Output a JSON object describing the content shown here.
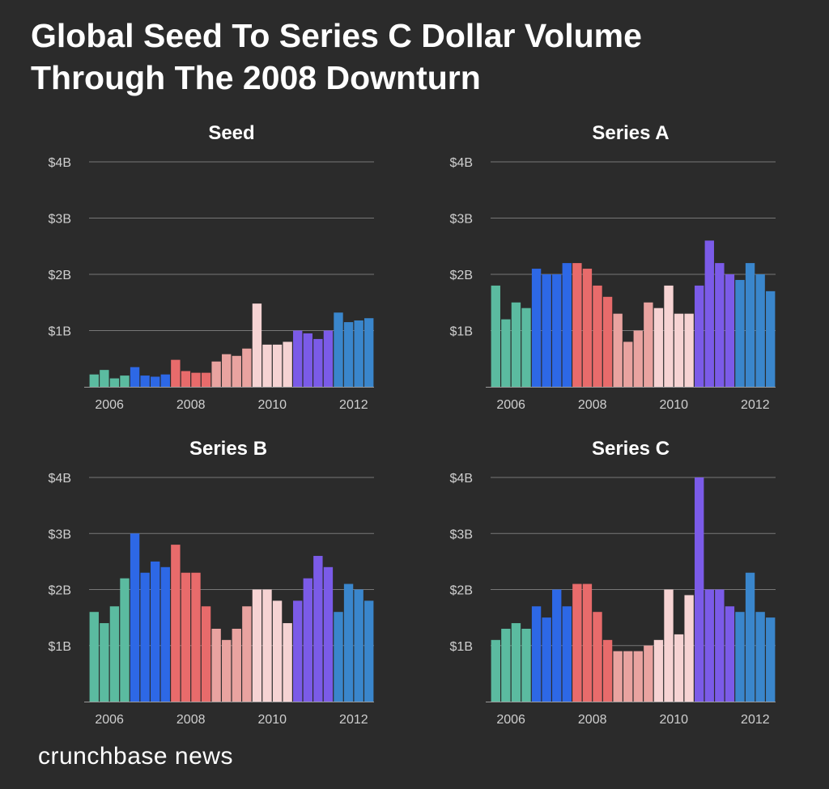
{
  "title": {
    "line1": "Global Seed To Series C Dollar Volume",
    "line2": "Through The 2008 Downturn"
  },
  "brand": "crunchbase news",
  "colors": {
    "background": "#2b2b2b",
    "gridline": "#777777",
    "axis": "#9a9a9a",
    "tick_text": "#cfcfcf",
    "periods": [
      "#5bbba0",
      "#2d68e6",
      "#e86b6b",
      "#e9a3a0",
      "#f6d3d3",
      "#7b5be8",
      "#3a86cc"
    ]
  },
  "chart_data": [
    {
      "type": "bar",
      "title": "Seed",
      "ylim": [
        0,
        4
      ],
      "yticks": [
        1,
        2,
        3,
        4
      ],
      "ytick_labels": [
        "$1B",
        "$2B",
        "$3B",
        "$4B"
      ],
      "xtick_labels": [
        "2006",
        "2008",
        "2010",
        "2012"
      ],
      "xlim": [
        2005.5,
        2012.5
      ],
      "x_start": 2005.5,
      "x_step": 0.25,
      "values": [
        0.22,
        0.3,
        0.15,
        0.2,
        0.35,
        0.2,
        0.18,
        0.22,
        0.48,
        0.28,
        0.25,
        0.25,
        0.45,
        0.58,
        0.55,
        0.68,
        1.48,
        0.75,
        0.75,
        0.8,
        1.0,
        0.95,
        0.85,
        1.0,
        1.32,
        1.15,
        1.18,
        1.22
      ],
      "period_index": [
        0,
        0,
        0,
        0,
        1,
        1,
        1,
        1,
        2,
        2,
        2,
        2,
        3,
        3,
        3,
        3,
        4,
        4,
        4,
        4,
        5,
        5,
        5,
        5,
        6,
        6,
        6,
        6
      ]
    },
    {
      "type": "bar",
      "title": "Series A",
      "ylim": [
        0,
        4
      ],
      "yticks": [
        1,
        2,
        3,
        4
      ],
      "ytick_labels": [
        "$1B",
        "$2B",
        "$3B",
        "$4B"
      ],
      "xtick_labels": [
        "2006",
        "2008",
        "2010",
        "2012"
      ],
      "xlim": [
        2005.5,
        2012.5
      ],
      "x_start": 2005.5,
      "x_step": 0.25,
      "values": [
        1.8,
        1.2,
        1.5,
        1.4,
        2.1,
        2.0,
        2.0,
        2.2,
        2.2,
        2.1,
        1.8,
        1.6,
        1.3,
        0.8,
        1.0,
        1.5,
        1.4,
        1.8,
        1.3,
        1.3,
        1.8,
        2.6,
        2.2,
        2.0,
        1.9,
        2.2,
        2.0,
        1.7
      ],
      "period_index": [
        0,
        0,
        0,
        0,
        1,
        1,
        1,
        1,
        2,
        2,
        2,
        2,
        3,
        3,
        3,
        3,
        4,
        4,
        4,
        4,
        5,
        5,
        5,
        5,
        6,
        6,
        6,
        6
      ]
    },
    {
      "type": "bar",
      "title": "Series B",
      "ylim": [
        0,
        4
      ],
      "yticks": [
        1,
        2,
        3,
        4
      ],
      "ytick_labels": [
        "$1B",
        "$2B",
        "$3B",
        "$4B"
      ],
      "xtick_labels": [
        "2006",
        "2008",
        "2010",
        "2012"
      ],
      "xlim": [
        2005.5,
        2012.5
      ],
      "x_start": 2005.5,
      "x_step": 0.25,
      "values": [
        1.6,
        1.4,
        1.7,
        2.2,
        3.0,
        2.3,
        2.5,
        2.4,
        2.8,
        2.3,
        2.3,
        1.7,
        1.3,
        1.1,
        1.3,
        1.7,
        2.0,
        2.0,
        1.8,
        1.4,
        1.8,
        2.2,
        2.6,
        2.4,
        1.6,
        2.1,
        2.0,
        1.8
      ],
      "period_index": [
        0,
        0,
        0,
        0,
        1,
        1,
        1,
        1,
        2,
        2,
        2,
        2,
        3,
        3,
        3,
        3,
        4,
        4,
        4,
        4,
        5,
        5,
        5,
        5,
        6,
        6,
        6,
        6
      ]
    },
    {
      "type": "bar",
      "title": "Series C",
      "ylim": [
        0,
        4
      ],
      "yticks": [
        1,
        2,
        3,
        4
      ],
      "ytick_labels": [
        "$1B",
        "$2B",
        "$3B",
        "$4B"
      ],
      "xtick_labels": [
        "2006",
        "2008",
        "2010",
        "2012"
      ],
      "xlim": [
        2005.5,
        2012.5
      ],
      "x_start": 2005.5,
      "x_step": 0.25,
      "values": [
        1.1,
        1.3,
        1.4,
        1.3,
        1.7,
        1.5,
        2.0,
        1.7,
        2.1,
        2.1,
        1.6,
        1.1,
        0.9,
        0.9,
        0.9,
        1.0,
        1.1,
        2.0,
        1.2,
        1.9,
        4.0,
        2.0,
        2.0,
        1.7,
        1.6,
        2.3,
        1.6,
        1.5
      ],
      "period_index": [
        0,
        0,
        0,
        0,
        1,
        1,
        1,
        1,
        2,
        2,
        2,
        2,
        3,
        3,
        3,
        3,
        4,
        4,
        4,
        4,
        5,
        5,
        5,
        5,
        6,
        6,
        6,
        6
      ]
    }
  ]
}
